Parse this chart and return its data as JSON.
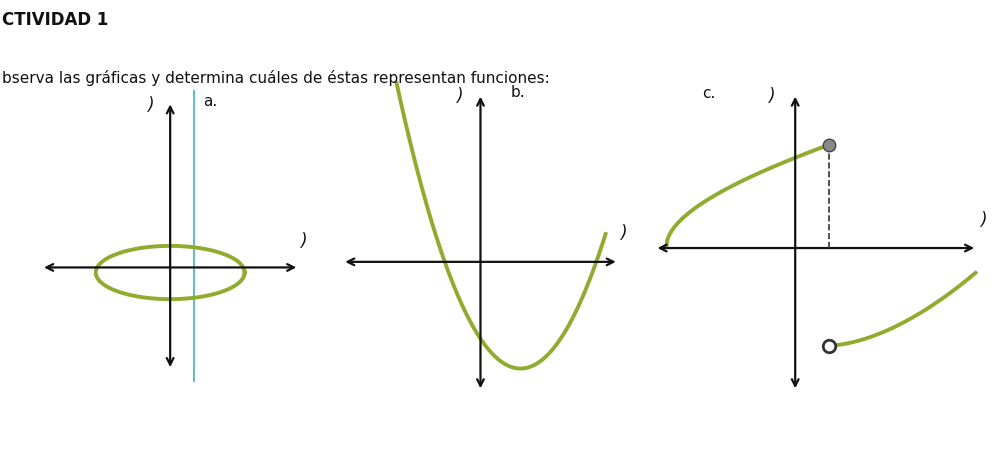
{
  "title_line1": "CTIVIDAD 1",
  "title_line2": "bserva las gráficas y determina cuáles de éstas representan funciones:",
  "curve_color": "#8fac2e",
  "curve_lw": 2.8,
  "axis_color": "#111111",
  "cyan_line_color": "#5bbfbf",
  "bg_color": "#ffffff",
  "label_a": "a.",
  "label_b": "b.",
  "label_c": "c.",
  "italic_y": ")",
  "italic_x": ")",
  "title_fontsize": 12,
  "subtitle_fontsize": 11,
  "label_fontsize": 11,
  "axis_lw": 1.6
}
